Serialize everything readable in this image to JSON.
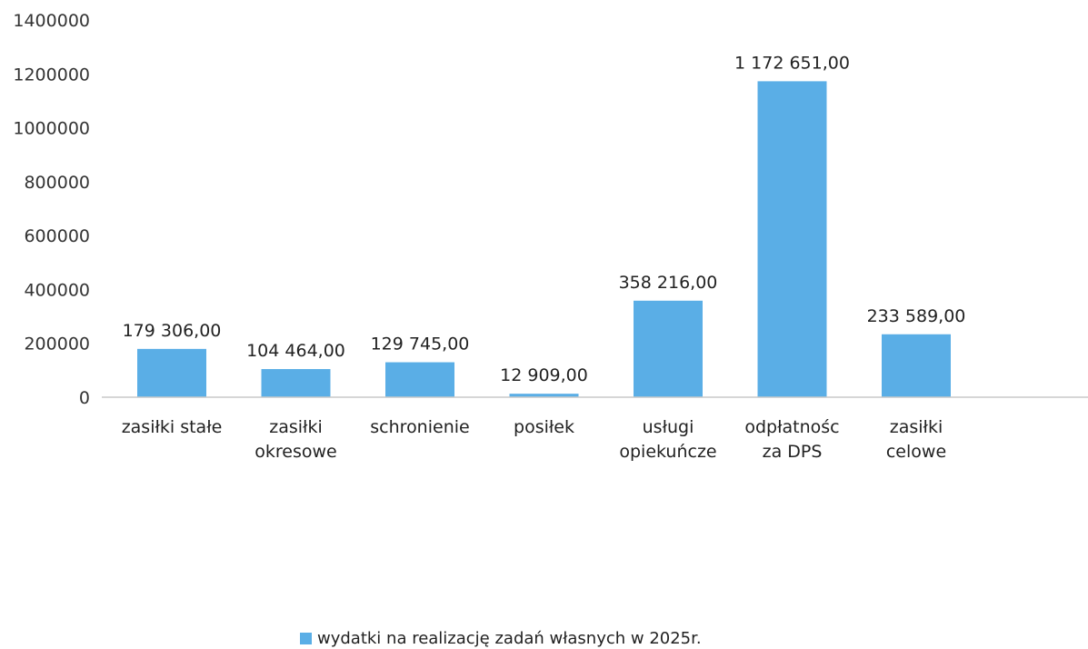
{
  "chart_data": {
    "type": "bar",
    "categories": [
      [
        "zasiłki stałe"
      ],
      [
        "zasiłki",
        "okresowe"
      ],
      [
        "schronienie"
      ],
      [
        "posiłek"
      ],
      [
        "usługi",
        "opiekuńcze"
      ],
      [
        "odpłatnośc",
        "za DPS"
      ],
      [
        "zasiłki",
        "celowe"
      ]
    ],
    "series": [
      {
        "name": "wydatki na realizację zadań własnych w 2025r.",
        "values": [
          179306,
          104464,
          129745,
          12909,
          358216,
          1172651,
          233589
        ],
        "data_labels": [
          "179 306,00",
          "104 464,00",
          "129 745,00",
          "12 909,00",
          "358 216,00",
          "1 172 651,00",
          "233 589,00"
        ],
        "color": "#5aaee6"
      }
    ],
    "yticks": [
      "0",
      "200000",
      "400000",
      "600000",
      "800000",
      "1000000",
      "1200000",
      "1400000"
    ],
    "ylim": [
      0,
      1400000
    ],
    "grid": false,
    "legend_position": "bottom"
  }
}
